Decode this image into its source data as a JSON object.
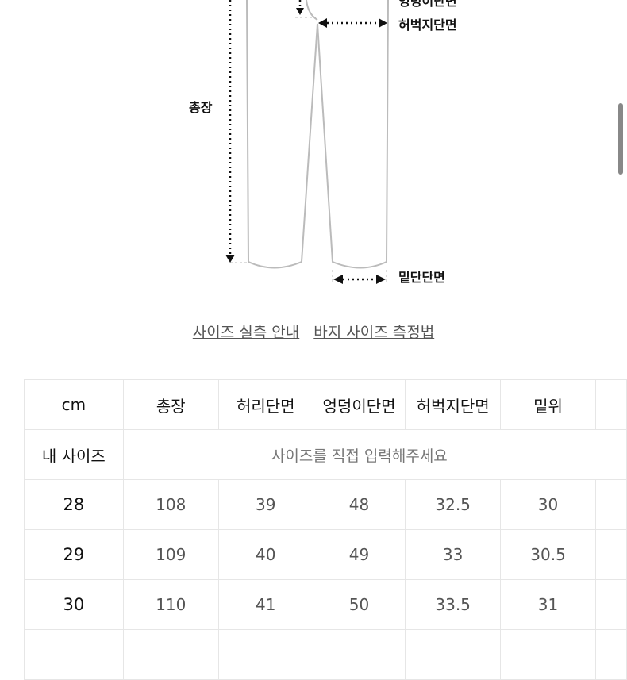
{
  "diagram": {
    "labels": {
      "hip": "엉덩이단면",
      "thigh": "허벅지단면",
      "length": "총장",
      "hem": "밑단단면"
    }
  },
  "links": [
    "사이즈 실측 안내",
    "바지 사이즈 측정법"
  ],
  "table": {
    "headers": [
      "cm",
      "총장",
      "허리단면",
      "엉덩이단면",
      "허벅지단면",
      "밑위",
      ""
    ],
    "my_size": {
      "label": "내 사이즈",
      "placeholder": "사이즈를 직접 입력해주세요"
    },
    "rows": [
      {
        "size": "28",
        "values": [
          "108",
          "39",
          "48",
          "32.5",
          "30",
          ""
        ]
      },
      {
        "size": "29",
        "values": [
          "109",
          "40",
          "49",
          "33",
          "30.5",
          ""
        ]
      },
      {
        "size": "30",
        "values": [
          "110",
          "41",
          "50",
          "33.5",
          "31",
          ""
        ]
      },
      {
        "size": "",
        "values": [
          "",
          "",
          "",
          "",
          "",
          ""
        ]
      }
    ]
  }
}
